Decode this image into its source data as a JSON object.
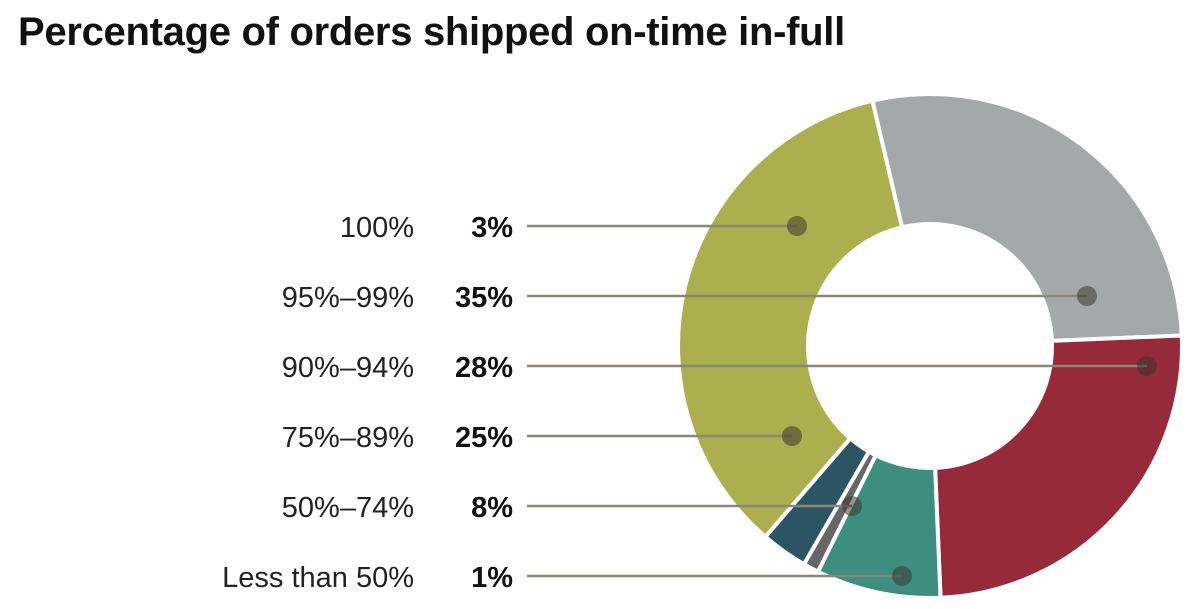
{
  "chart_data": {
    "type": "pie",
    "title": "Percentage of orders shipped on-time in-full",
    "categories": [
      "100%",
      "95%–99%",
      "90%–94%",
      "75%–89%",
      "50%–74%",
      "Less than 50%"
    ],
    "values": [
      3,
      35,
      28,
      25,
      8,
      1
    ],
    "value_labels": [
      "3%",
      "35%",
      "28%",
      "25%",
      "8%",
      "1%"
    ],
    "colors": [
      "#2b5563",
      "#abaf4d",
      "#a5a8a9",
      "#96293a",
      "#3e8e80",
      "#666666"
    ],
    "style": "donut",
    "legend_placement": "left"
  }
}
